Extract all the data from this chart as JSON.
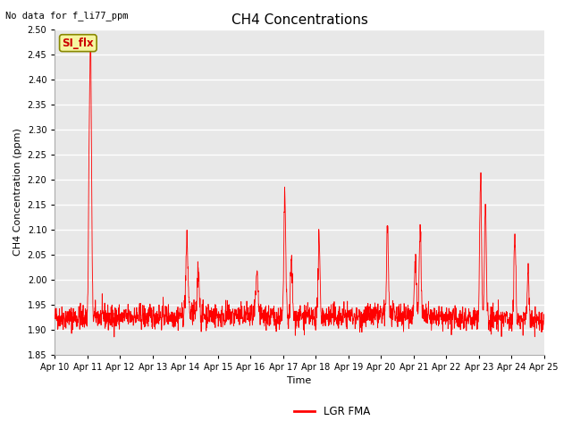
{
  "title": "CH4 Concentrations",
  "xlabel": "Time",
  "ylabel": "CH4 Concentration (ppm)",
  "top_left_text": "No data for f_li77_ppm",
  "legend_label": "LGR FMA",
  "legend_box_label": "SI_flx",
  "ylim": [
    1.85,
    2.5
  ],
  "yticks": [
    1.85,
    1.9,
    1.95,
    2.0,
    2.05,
    2.1,
    2.15,
    2.2,
    2.25,
    2.3,
    2.35,
    2.4,
    2.45,
    2.5
  ],
  "xtick_labels": [
    "Apr 10",
    "Apr 11",
    "Apr 12",
    "Apr 13",
    "Apr 14",
    "Apr 15",
    "Apr 16",
    "Apr 17",
    "Apr 18",
    "Apr 19",
    "Apr 20",
    "Apr 21",
    "Apr 22",
    "Apr 23",
    "Apr 24",
    "Apr 25"
  ],
  "line_color": "#ff0000",
  "fig_bg_color": "#ffffff",
  "plot_bg_color": "#e8e8e8",
  "grid_color": "#ffffff",
  "title_fontsize": 11,
  "label_fontsize": 8,
  "tick_fontsize": 7,
  "annot_fontsize": 8
}
